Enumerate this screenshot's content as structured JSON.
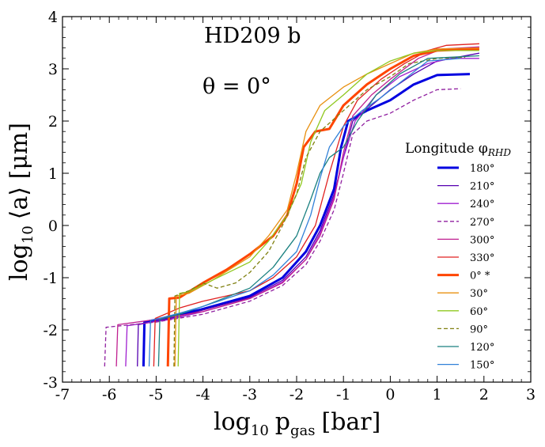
{
  "chart_data": {
    "type": "line",
    "xlabel": "log₁₀ pₐₐₛ [bar]",
    "xlabel_main": "log",
    "xlabel_sub": "10",
    "xlabel_var": "p",
    "xlabel_var_sub": "gas",
    "xlabel_unit": "[bar]",
    "ylabel_main": "log",
    "ylabel_sub": "10",
    "ylabel_rest": "⟨a⟩ [μm]",
    "xlim": [
      -7,
      3
    ],
    "ylim": [
      -3,
      4
    ],
    "xticks": [
      "-7",
      "-6",
      "-5",
      "-4",
      "-3",
      "-2",
      "-1",
      "0",
      "1",
      "2",
      "3"
    ],
    "yticks": [
      "-3",
      "-2",
      "-1",
      "0",
      "1",
      "2",
      "3",
      "4"
    ],
    "annotations": [
      "HD209 b",
      "θ = 0°"
    ],
    "legend_title": "Longitude φ",
    "legend_title_sub": "RHD",
    "legend_position": "right",
    "grid": false,
    "series": [
      {
        "name": "180°",
        "color": "#0000e0",
        "style": "solid",
        "width": 3,
        "points": [
          [
            -5.27,
            -2.7
          ],
          [
            -5.25,
            -1.85
          ],
          [
            -4.7,
            -1.75
          ],
          [
            -4,
            -1.6
          ],
          [
            -3,
            -1.35
          ],
          [
            -2.3,
            -1.0
          ],
          [
            -1.8,
            -0.5
          ],
          [
            -1.5,
            0.0
          ],
          [
            -1.2,
            0.7
          ],
          [
            -1.05,
            1.5
          ],
          [
            -0.9,
            2.0
          ],
          [
            -0.5,
            2.2
          ],
          [
            0,
            2.4
          ],
          [
            0.5,
            2.7
          ],
          [
            1.0,
            2.88
          ],
          [
            1.7,
            2.9
          ]
        ]
      },
      {
        "name": "210°",
        "color": "#5500b0",
        "style": "solid",
        "width": 1.3,
        "points": [
          [
            -5.4,
            -2.7
          ],
          [
            -5.38,
            -1.9
          ],
          [
            -4.7,
            -1.78
          ],
          [
            -4,
            -1.62
          ],
          [
            -3,
            -1.38
          ],
          [
            -2.3,
            -1.05
          ],
          [
            -1.8,
            -0.6
          ],
          [
            -1.5,
            -0.1
          ],
          [
            -1.2,
            0.6
          ],
          [
            -1.0,
            1.3
          ],
          [
            -0.8,
            2.0
          ],
          [
            -0.4,
            2.3
          ],
          [
            0,
            2.6
          ],
          [
            0.5,
            2.9
          ],
          [
            1.0,
            3.15
          ],
          [
            1.9,
            3.3
          ]
        ]
      },
      {
        "name": "240°",
        "color": "#a020d0",
        "style": "solid",
        "width": 1.3,
        "points": [
          [
            -5.65,
            -2.7
          ],
          [
            -5.62,
            -1.92
          ],
          [
            -4.7,
            -1.8
          ],
          [
            -4,
            -1.65
          ],
          [
            -3,
            -1.4
          ],
          [
            -2.3,
            -1.08
          ],
          [
            -1.8,
            -0.65
          ],
          [
            -1.5,
            -0.15
          ],
          [
            -1.2,
            0.55
          ],
          [
            -1.0,
            1.3
          ],
          [
            -0.75,
            2.0
          ],
          [
            -0.3,
            2.5
          ],
          [
            0.2,
            2.85
          ],
          [
            0.8,
            3.1
          ],
          [
            1.3,
            3.2
          ],
          [
            1.9,
            3.2
          ]
        ]
      },
      {
        "name": "270°",
        "color": "#9020a0",
        "style": "dashed",
        "width": 1.3,
        "points": [
          [
            -6.1,
            -2.7
          ],
          [
            -6.07,
            -1.95
          ],
          [
            -5.0,
            -1.85
          ],
          [
            -4,
            -1.7
          ],
          [
            -3,
            -1.45
          ],
          [
            -2.3,
            -1.15
          ],
          [
            -1.8,
            -0.75
          ],
          [
            -1.5,
            -0.3
          ],
          [
            -1.2,
            0.3
          ],
          [
            -1.0,
            1.0
          ],
          [
            -0.8,
            1.75
          ],
          [
            -0.5,
            2.0
          ],
          [
            0,
            2.15
          ],
          [
            0.5,
            2.4
          ],
          [
            1.0,
            2.6
          ],
          [
            1.5,
            2.62
          ]
        ]
      },
      {
        "name": "300°",
        "color": "#c02090",
        "style": "solid",
        "width": 1.3,
        "points": [
          [
            -5.85,
            -2.7
          ],
          [
            -5.82,
            -1.9
          ],
          [
            -5.0,
            -1.8
          ],
          [
            -4,
            -1.65
          ],
          [
            -3,
            -1.4
          ],
          [
            -2.3,
            -1.1
          ],
          [
            -1.8,
            -0.65
          ],
          [
            -1.5,
            -0.2
          ],
          [
            -1.2,
            0.5
          ],
          [
            -1.0,
            1.4
          ],
          [
            -0.8,
            2.1
          ],
          [
            -0.4,
            2.5
          ],
          [
            0,
            2.8
          ],
          [
            0.6,
            3.2
          ],
          [
            1.1,
            3.38
          ],
          [
            1.9,
            3.42
          ]
        ]
      },
      {
        "name": "330°",
        "color": "#e02020",
        "style": "solid",
        "width": 1.3,
        "points": [
          [
            -5.05,
            -2.7
          ],
          [
            -5.02,
            -1.78
          ],
          [
            -4.5,
            -1.58
          ],
          [
            -4,
            -1.45
          ],
          [
            -3,
            -1.25
          ],
          [
            -2.5,
            -1.0
          ],
          [
            -2.0,
            -0.6
          ],
          [
            -1.6,
            0.0
          ],
          [
            -1.3,
            1.0
          ],
          [
            -1.0,
            1.9
          ],
          [
            -0.7,
            2.4
          ],
          [
            -0.2,
            2.8
          ],
          [
            0.3,
            3.1
          ],
          [
            0.8,
            3.35
          ],
          [
            1.2,
            3.45
          ],
          [
            1.9,
            3.48
          ]
        ]
      },
      {
        "name": "0° *",
        "color": "#ff4500",
        "style": "solid",
        "width": 3,
        "points": [
          [
            -4.75,
            -2.7
          ],
          [
            -4.72,
            -1.4
          ],
          [
            -4.5,
            -1.38
          ],
          [
            -4.0,
            -1.1
          ],
          [
            -3.5,
            -0.85
          ],
          [
            -3,
            -0.55
          ],
          [
            -2.5,
            -0.2
          ],
          [
            -2.2,
            0.2
          ],
          [
            -2.0,
            0.8
          ],
          [
            -1.85,
            1.5
          ],
          [
            -1.6,
            1.8
          ],
          [
            -1.3,
            1.85
          ],
          [
            -1.0,
            2.3
          ],
          [
            -0.5,
            2.7
          ],
          [
            0,
            3.0
          ],
          [
            0.5,
            3.25
          ],
          [
            1.0,
            3.35
          ],
          [
            1.9,
            3.38
          ]
        ]
      },
      {
        "name": "30°",
        "color": "#e89010",
        "style": "solid",
        "width": 1.3,
        "points": [
          [
            -4.6,
            -2.7
          ],
          [
            -4.57,
            -1.35
          ],
          [
            -4.3,
            -1.3
          ],
          [
            -3.8,
            -1.05
          ],
          [
            -3,
            -0.6
          ],
          [
            -2.6,
            -0.2
          ],
          [
            -2.2,
            0.3
          ],
          [
            -2.0,
            1.0
          ],
          [
            -1.8,
            1.8
          ],
          [
            -1.5,
            2.3
          ],
          [
            -1.0,
            2.65
          ],
          [
            -0.5,
            2.9
          ],
          [
            0,
            3.1
          ],
          [
            0.5,
            3.3
          ],
          [
            1.0,
            3.38
          ],
          [
            1.9,
            3.4
          ]
        ]
      },
      {
        "name": "60°",
        "color": "#90c820",
        "style": "solid",
        "width": 1.3,
        "points": [
          [
            -4.53,
            -2.7
          ],
          [
            -4.5,
            -1.3
          ],
          [
            -4.3,
            -1.27
          ],
          [
            -3.8,
            -1.05
          ],
          [
            -3,
            -0.7
          ],
          [
            -2.6,
            -0.3
          ],
          [
            -2.2,
            0.2
          ],
          [
            -1.9,
            0.8
          ],
          [
            -1.7,
            1.6
          ],
          [
            -1.4,
            2.2
          ],
          [
            -1.0,
            2.5
          ],
          [
            -0.5,
            2.9
          ],
          [
            0,
            3.15
          ],
          [
            0.5,
            3.3
          ],
          [
            1.0,
            3.35
          ],
          [
            1.9,
            3.35
          ]
        ]
      },
      {
        "name": "90°",
        "color": "#808010",
        "style": "dashed",
        "width": 1.3,
        "points": [
          [
            -4.62,
            -2.7
          ],
          [
            -4.6,
            -1.35
          ],
          [
            -4.3,
            -1.25
          ],
          [
            -4.0,
            -1.1
          ],
          [
            -3.7,
            -1.2
          ],
          [
            -3.3,
            -1.1
          ],
          [
            -3.0,
            -0.9
          ],
          [
            -2.6,
            -0.5
          ],
          [
            -2.3,
            0.0
          ],
          [
            -2.0,
            0.6
          ],
          [
            -1.8,
            1.3
          ],
          [
            -1.5,
            1.8
          ],
          [
            -1.0,
            2.2
          ],
          [
            -0.5,
            2.6
          ],
          [
            0,
            2.85
          ],
          [
            0.4,
            3.1
          ],
          [
            1.0,
            3.2
          ],
          [
            1.6,
            3.22
          ]
        ]
      },
      {
        "name": "120°",
        "color": "#1a8080",
        "style": "solid",
        "width": 1.3,
        "points": [
          [
            -4.95,
            -2.7
          ],
          [
            -4.92,
            -1.8
          ],
          [
            -4.5,
            -1.7
          ],
          [
            -4,
            -1.55
          ],
          [
            -3,
            -1.2
          ],
          [
            -2.5,
            -0.8
          ],
          [
            -2.0,
            -0.2
          ],
          [
            -1.7,
            0.5
          ],
          [
            -1.5,
            1.0
          ],
          [
            -1.3,
            1.3
          ],
          [
            -1.0,
            1.5
          ],
          [
            -0.7,
            2.0
          ],
          [
            -0.3,
            2.5
          ],
          [
            0.2,
            2.9
          ],
          [
            0.8,
            3.2
          ],
          [
            1.9,
            3.25
          ]
        ]
      },
      {
        "name": "150°",
        "color": "#3080d8",
        "style": "solid",
        "width": 1.3,
        "points": [
          [
            -5.15,
            -2.7
          ],
          [
            -5.12,
            -1.82
          ],
          [
            -4.5,
            -1.68
          ],
          [
            -4,
            -1.55
          ],
          [
            -3,
            -1.25
          ],
          [
            -2.5,
            -0.95
          ],
          [
            -2.0,
            -0.5
          ],
          [
            -1.7,
            0.2
          ],
          [
            -1.5,
            0.9
          ],
          [
            -1.3,
            1.5
          ],
          [
            -1.0,
            1.9
          ],
          [
            -0.6,
            2.2
          ],
          [
            -0.2,
            2.45
          ],
          [
            0.3,
            2.8
          ],
          [
            0.8,
            3.15
          ],
          [
            1.5,
            3.2
          ]
        ]
      }
    ]
  }
}
